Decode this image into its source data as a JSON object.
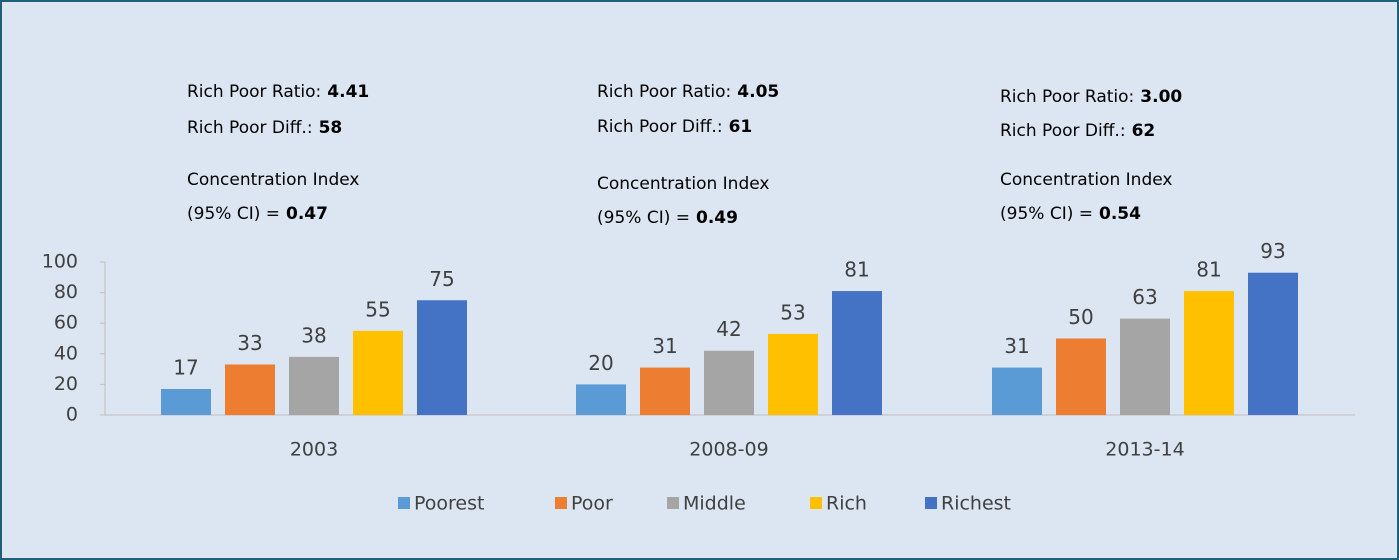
{
  "chart_data": {
    "type": "bar",
    "categories": [
      "2003",
      "2008-09",
      "2013-14"
    ],
    "series": [
      {
        "name": "Poorest",
        "color": "#5b9bd5",
        "values": [
          17,
          20,
          31
        ]
      },
      {
        "name": "Poor",
        "color": "#ed7d31",
        "values": [
          33,
          31,
          50
        ]
      },
      {
        "name": "Middle",
        "color": "#a5a5a5",
        "values": [
          38,
          42,
          63
        ]
      },
      {
        "name": "Rich",
        "color": "#ffc000",
        "values": [
          55,
          53,
          81
        ]
      },
      {
        "name": "Richest",
        "color": "#4472c4",
        "values": [
          75,
          81,
          93
        ]
      }
    ],
    "ylim": [
      0,
      100
    ],
    "yticks": [
      0,
      20,
      40,
      60,
      80,
      100
    ],
    "grid": false,
    "legend": "bottom",
    "annotations": [
      {
        "ratio_label": "Rich Poor Ratio:",
        "ratio": "4.41",
        "diff_label": "Rich Poor Diff.:",
        "diff": "58",
        "ci_label": "Concentration Index",
        "ci_sub": "(95% CI) =",
        "ci": "0.47"
      },
      {
        "ratio_label": "Rich Poor Ratio:",
        "ratio": "4.05",
        "diff_label": "Rich Poor Diff.:",
        "diff": "61",
        "ci_label": "Concentration Index",
        "ci_sub": "(95% CI) =",
        "ci": "0.49"
      },
      {
        "ratio_label": "Rich Poor Ratio:",
        "ratio": "3.00",
        "diff_label": "Rich Poor Diff.:",
        "diff": "62",
        "ci_label": "Concentration Index",
        "ci_sub": "(95% CI) =",
        "ci": "0.54"
      }
    ]
  }
}
